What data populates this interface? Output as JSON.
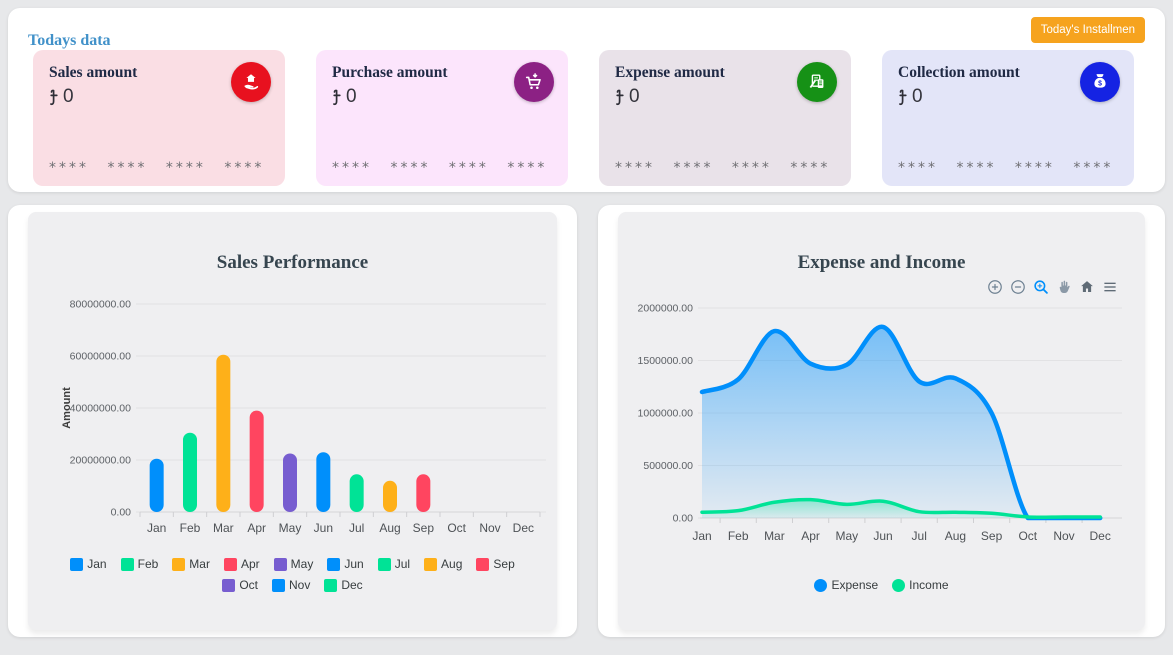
{
  "header": {
    "section_title": "Todays data",
    "installment_button_label": "Today's Installmen"
  },
  "cards": [
    {
      "title": "Sales amount",
      "currency": "৳",
      "amount": "0",
      "masked": "**** **** **** ****",
      "bg": "#fadee4",
      "icon": "hand-house-icon",
      "icon_bg": "#e8111f"
    },
    {
      "title": "Purchase amount",
      "currency": "৳",
      "amount": "0",
      "masked": "**** **** **** ****",
      "bg": "#fce5fc",
      "icon": "cart-icon",
      "icon_bg": "#8c2184"
    },
    {
      "title": "Expense amount",
      "currency": "৳",
      "amount": "0",
      "masked": "**** **** **** ****",
      "bg": "#e9e2e9",
      "icon": "receipt-calculator-icon",
      "icon_bg": "#169116"
    },
    {
      "title": "Collection amount",
      "currency": "৳",
      "amount": "0",
      "masked": "**** **** **** ****",
      "bg": "#e3e5f8",
      "icon": "money-bag-icon",
      "icon_bg": "#1523e3"
    }
  ],
  "chart_data": [
    {
      "type": "bar",
      "title": "Sales Performance",
      "ylabel": "Amount",
      "xlabel": "",
      "categories": [
        "Jan",
        "Feb",
        "Mar",
        "Apr",
        "May",
        "Jun",
        "Jul",
        "Aug",
        "Sep",
        "Oct",
        "Nov",
        "Dec"
      ],
      "values": [
        20500000,
        30500000,
        60500000,
        39000000,
        22500000,
        23000000,
        14500000,
        12000000,
        14500000,
        0,
        0,
        0
      ],
      "ylim": [
        0,
        80000000
      ],
      "yticks": [
        0,
        20000000,
        40000000,
        60000000,
        80000000
      ],
      "ytick_labels": [
        "0.00",
        "20000000.00",
        "40000000.00",
        "60000000.00",
        "80000000.00"
      ],
      "grid": true,
      "legend_position": "bottom",
      "color_cycle": [
        "#008FFB",
        "#00E396",
        "#FEB019",
        "#FF4560",
        "#775DD0"
      ],
      "legend": [
        {
          "label": "Jan",
          "color": "#008FFB"
        },
        {
          "label": "Feb",
          "color": "#00E396"
        },
        {
          "label": "Mar",
          "color": "#FEB019"
        },
        {
          "label": "Apr",
          "color": "#FF4560"
        },
        {
          "label": "May",
          "color": "#775DD0"
        },
        {
          "label": "Jun",
          "color": "#008FFB"
        },
        {
          "label": "Jul",
          "color": "#00E396"
        },
        {
          "label": "Aug",
          "color": "#FEB019"
        },
        {
          "label": "Sep",
          "color": "#FF4560"
        },
        {
          "label": "Oct",
          "color": "#775DD0"
        },
        {
          "label": "Nov",
          "color": "#008FFB"
        },
        {
          "label": "Dec",
          "color": "#00E396"
        }
      ]
    },
    {
      "type": "area",
      "title": "Expense and Income",
      "xlabel": "",
      "ylabel": "",
      "categories": [
        "Jan",
        "Feb",
        "Mar",
        "Apr",
        "May",
        "Jun",
        "Jul",
        "Aug",
        "Sep",
        "Oct",
        "Nov",
        "Dec"
      ],
      "series": [
        {
          "name": "Expense",
          "color": "#008FFB",
          "values": [
            1200000,
            1320000,
            1780000,
            1470000,
            1460000,
            1820000,
            1300000,
            1330000,
            1000000,
            0,
            0,
            0
          ]
        },
        {
          "name": "Income",
          "color": "#00E396",
          "values": [
            55000,
            70000,
            150000,
            175000,
            130000,
            160000,
            60000,
            55000,
            45000,
            10000,
            10000,
            10000
          ]
        }
      ],
      "ylim": [
        0,
        2000000
      ],
      "yticks": [
        0,
        500000,
        1000000,
        1500000,
        2000000
      ],
      "ytick_labels": [
        "0.00",
        "500000.00",
        "1000000.00",
        "1500000.00",
        "2000000.00"
      ],
      "grid": true,
      "legend_position": "bottom",
      "toolbar": [
        "zoom-in-icon",
        "zoom-out-icon",
        "selection-zoom-icon",
        "pan-icon",
        "home-icon",
        "menu-icon"
      ]
    }
  ]
}
